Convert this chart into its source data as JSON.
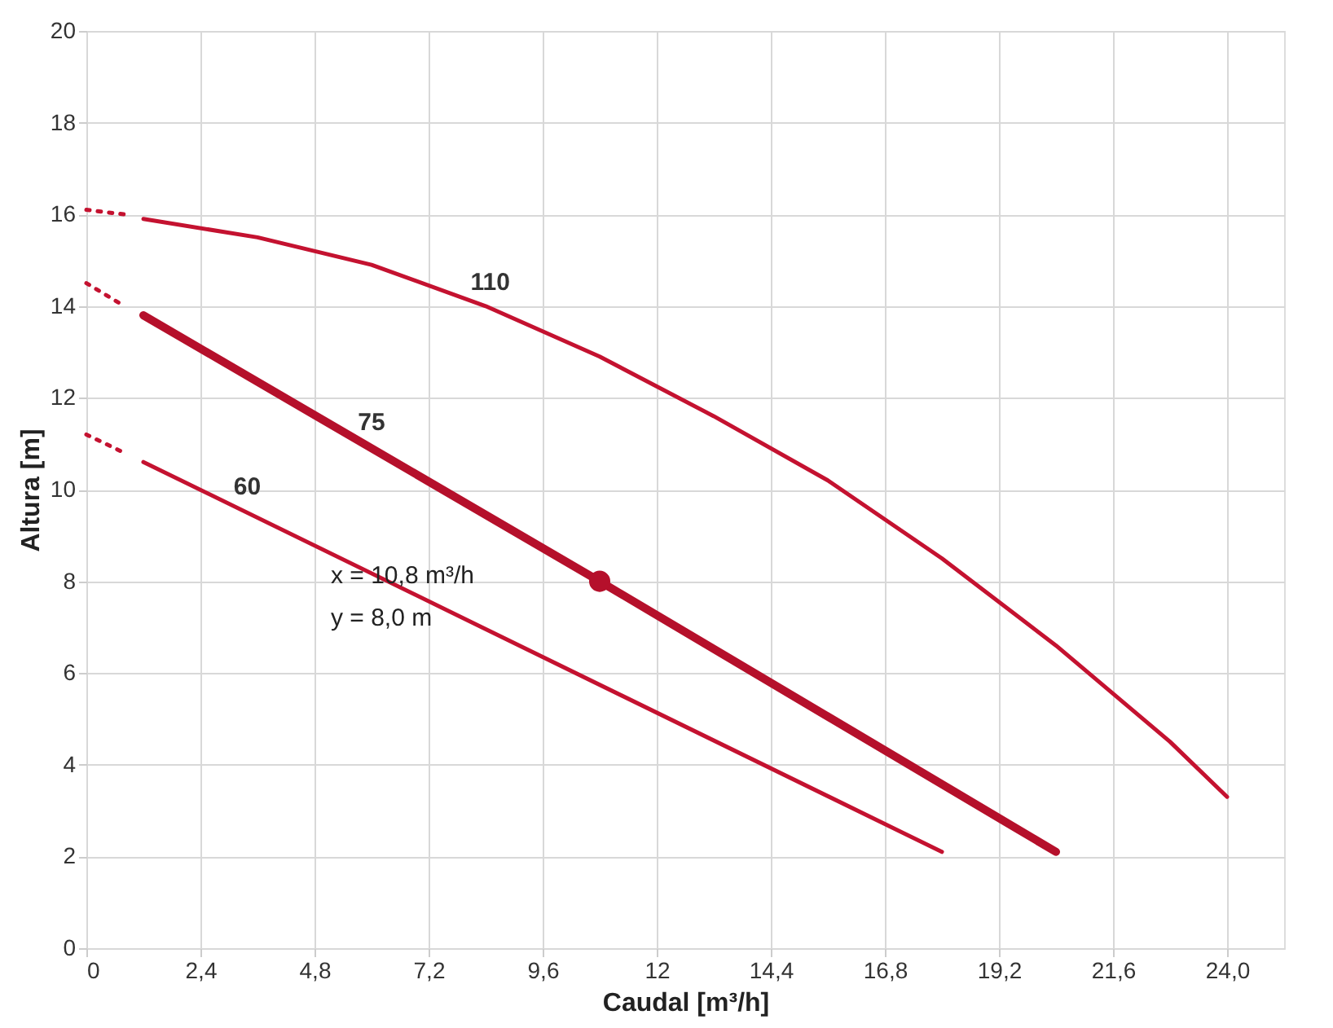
{
  "chart_data": {
    "type": "line",
    "xlabel": "Caudal [m³/h]",
    "ylabel": "Altura [m]",
    "xlim": [
      0,
      25.2
    ],
    "ylim": [
      0,
      20
    ],
    "xticks": [
      0,
      {
        "value": 2.4,
        "label": "2,4"
      },
      {
        "value": 4.8,
        "label": "4,8"
      },
      {
        "value": 7.2,
        "label": "7,2"
      },
      {
        "value": 9.6,
        "label": "9,6"
      },
      12,
      {
        "value": 14.4,
        "label": "14,4"
      },
      {
        "value": 16.8,
        "label": "16,8"
      },
      {
        "value": 19.2,
        "label": "19,2"
      },
      {
        "value": 21.6,
        "label": "21,6"
      },
      {
        "value": 24,
        "label": "24,0"
      }
    ],
    "yticks": [
      0,
      2,
      4,
      6,
      8,
      10,
      12,
      14,
      16,
      18,
      20
    ],
    "grid": true,
    "series": [
      {
        "name": "110",
        "color": "#c41230",
        "line_style": "solid",
        "x": [
          1.2,
          3.6,
          6,
          8.4,
          10.8,
          13.2,
          15.6,
          18,
          20.4,
          22.8,
          24
        ],
        "values": [
          15.9,
          15.5,
          14.9,
          14.0,
          12.9,
          11.6,
          10.2,
          8.5,
          6.6,
          4.5,
          3.3
        ]
      },
      {
        "color": "#c41230",
        "line_style": "dotted",
        "x": [
          0,
          0.8
        ],
        "values": [
          16.1,
          16.0
        ]
      },
      {
        "name": "75",
        "color": "#b5102b",
        "line_style": "solid",
        "x": [
          1.2,
          10.8,
          20.4
        ],
        "values": [
          13.8,
          8.0,
          2.1
        ]
      },
      {
        "color": "#c41230",
        "line_style": "dotted",
        "x": [
          0,
          0.8
        ],
        "values": [
          14.5,
          14.0
        ]
      },
      {
        "name": "60",
        "color": "#c41230",
        "line_style": "solid",
        "x": [
          1.2,
          18
        ],
        "values": [
          10.6,
          2.1
        ]
      },
      {
        "color": "#c41230",
        "line_style": "dotted",
        "x": [
          0,
          0.8
        ],
        "values": [
          11.2,
          10.8
        ]
      },
      {
        "type": "scatter",
        "marker": "circle",
        "color": "#b5102b",
        "x": [
          10.8
        ],
        "values": [
          8.0
        ]
      }
    ],
    "annotations": [
      "x =  10,8  m³/h",
      "y =  8,0  m"
    ]
  }
}
